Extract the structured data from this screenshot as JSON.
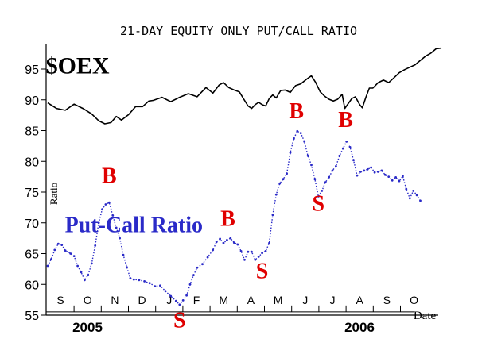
{
  "chart_data": {
    "type": "line",
    "title": "21-DAY EQUITY ONLY PUT/CALL RATIO",
    "ylabel": "Ratio",
    "xlabel": "Date",
    "ylim": [
      55,
      100
    ],
    "yticks": [
      55,
      60,
      65,
      70,
      75,
      80,
      85,
      90,
      95
    ],
    "months": [
      "S",
      "O",
      "N",
      "D",
      "J",
      "F",
      "M",
      "A",
      "M",
      "J",
      "J",
      "A",
      "S",
      "O"
    ],
    "years": [
      "2005",
      "2006"
    ],
    "series": [
      {
        "name": "$OEX",
        "color": "#000000",
        "values": [
          [
            0,
            89.5
          ],
          [
            10,
            88.6
          ],
          [
            20,
            88.3
          ],
          [
            30,
            89.3
          ],
          [
            40,
            88.6
          ],
          [
            50,
            87.7
          ],
          [
            58,
            86.6
          ],
          [
            65,
            86.1
          ],
          [
            72,
            86.3
          ],
          [
            78,
            87.3
          ],
          [
            84,
            86.7
          ],
          [
            92,
            87.6
          ],
          [
            100,
            88.9
          ],
          [
            108,
            88.9
          ],
          [
            115,
            89.8
          ],
          [
            120,
            89.9
          ],
          [
            130,
            90.4
          ],
          [
            140,
            89.7
          ],
          [
            150,
            90.4
          ],
          [
            160,
            91.0
          ],
          [
            170,
            90.5
          ],
          [
            180,
            92.0
          ],
          [
            188,
            91.1
          ],
          [
            195,
            92.4
          ],
          [
            200,
            92.8
          ],
          [
            206,
            92.0
          ],
          [
            212,
            91.6
          ],
          [
            218,
            91.3
          ],
          [
            224,
            89.9
          ],
          [
            228,
            89.0
          ],
          [
            232,
            88.6
          ],
          [
            236,
            89.2
          ],
          [
            240,
            89.6
          ],
          [
            244,
            89.2
          ],
          [
            248,
            89.0
          ],
          [
            252,
            90.2
          ],
          [
            256,
            90.8
          ],
          [
            260,
            90.3
          ],
          [
            265,
            91.5
          ],
          [
            270,
            91.6
          ],
          [
            276,
            91.2
          ],
          [
            282,
            92.3
          ],
          [
            288,
            92.6
          ],
          [
            294,
            93.3
          ],
          [
            300,
            93.9
          ],
          [
            305,
            92.8
          ],
          [
            310,
            91.3
          ],
          [
            315,
            90.6
          ],
          [
            320,
            90.1
          ],
          [
            325,
            89.8
          ],
          [
            330,
            90.1
          ],
          [
            335,
            90.9
          ],
          [
            338,
            88.6
          ],
          [
            342,
            89.4
          ],
          [
            346,
            90.2
          ],
          [
            350,
            90.5
          ],
          [
            355,
            89.2
          ],
          [
            358,
            88.7
          ],
          [
            362,
            90.4
          ],
          [
            366,
            91.9
          ],
          [
            370,
            91.9
          ],
          [
            376,
            92.8
          ],
          [
            382,
            93.2
          ],
          [
            388,
            92.8
          ],
          [
            394,
            93.6
          ],
          [
            400,
            94.4
          ],
          [
            406,
            94.9
          ],
          [
            412,
            95.3
          ],
          [
            418,
            95.7
          ],
          [
            424,
            96.4
          ],
          [
            430,
            97.1
          ],
          [
            436,
            97.6
          ],
          [
            442,
            98.3
          ],
          [
            448,
            98.4
          ]
        ]
      },
      {
        "name": "Put-Call Ratio",
        "color": "#2a2ac8",
        "values": [
          [
            0,
            63.0
          ],
          [
            4,
            64.1
          ],
          [
            8,
            65.6
          ],
          [
            12,
            66.6
          ],
          [
            16,
            66.4
          ],
          [
            20,
            65.5
          ],
          [
            26,
            65.0
          ],
          [
            30,
            64.6
          ],
          [
            34,
            63.0
          ],
          [
            38,
            62.0
          ],
          [
            42,
            60.7
          ],
          [
            46,
            61.5
          ],
          [
            50,
            63.4
          ],
          [
            54,
            66.3
          ],
          [
            58,
            70.0
          ],
          [
            62,
            72.2
          ],
          [
            66,
            73.0
          ],
          [
            70,
            73.3
          ],
          [
            74,
            71.2
          ],
          [
            78,
            69.2
          ],
          [
            82,
            67.5
          ],
          [
            86,
            64.8
          ],
          [
            90,
            62.8
          ],
          [
            94,
            61.0
          ],
          [
            98,
            60.8
          ],
          [
            104,
            60.7
          ],
          [
            110,
            60.5
          ],
          [
            116,
            60.2
          ],
          [
            122,
            59.7
          ],
          [
            128,
            59.8
          ],
          [
            134,
            58.9
          ],
          [
            140,
            58.1
          ],
          [
            146,
            57.3
          ],
          [
            150,
            56.7
          ],
          [
            154,
            57.4
          ],
          [
            158,
            58.2
          ],
          [
            162,
            60.0
          ],
          [
            166,
            61.5
          ],
          [
            170,
            62.7
          ],
          [
            176,
            63.3
          ],
          [
            182,
            64.4
          ],
          [
            188,
            65.6
          ],
          [
            192,
            66.9
          ],
          [
            196,
            67.4
          ],
          [
            200,
            66.7
          ],
          [
            204,
            67.2
          ],
          [
            208,
            67.5
          ],
          [
            212,
            66.8
          ],
          [
            216,
            66.5
          ],
          [
            220,
            65.4
          ],
          [
            224,
            64.0
          ],
          [
            228,
            65.3
          ],
          [
            232,
            65.3
          ],
          [
            236,
            64.0
          ],
          [
            240,
            64.5
          ],
          [
            244,
            65.1
          ],
          [
            248,
            65.4
          ],
          [
            252,
            66.7
          ],
          [
            256,
            71.3
          ],
          [
            260,
            74.6
          ],
          [
            264,
            76.4
          ],
          [
            268,
            77.1
          ],
          [
            272,
            78.0
          ],
          [
            276,
            81.4
          ],
          [
            280,
            83.7
          ],
          [
            284,
            84.9
          ],
          [
            288,
            84.6
          ],
          [
            292,
            83.2
          ],
          [
            296,
            80.9
          ],
          [
            300,
            79.4
          ],
          [
            304,
            77.1
          ],
          [
            308,
            74.3
          ],
          [
            312,
            75.2
          ],
          [
            316,
            76.6
          ],
          [
            320,
            77.4
          ],
          [
            324,
            78.5
          ],
          [
            328,
            79.2
          ],
          [
            332,
            80.9
          ],
          [
            336,
            82.1
          ],
          [
            340,
            83.2
          ],
          [
            344,
            82.3
          ],
          [
            348,
            80.2
          ],
          [
            352,
            77.7
          ],
          [
            356,
            78.3
          ],
          [
            360,
            78.5
          ],
          [
            364,
            78.7
          ],
          [
            368,
            79.0
          ],
          [
            372,
            78.2
          ],
          [
            376,
            78.3
          ],
          [
            380,
            78.5
          ],
          [
            384,
            77.8
          ],
          [
            388,
            77.5
          ],
          [
            392,
            76.9
          ],
          [
            396,
            77.4
          ],
          [
            400,
            76.8
          ],
          [
            404,
            77.6
          ],
          [
            408,
            75.5
          ],
          [
            412,
            74.0
          ],
          [
            416,
            75.2
          ],
          [
            420,
            74.5
          ],
          [
            424,
            73.6
          ]
        ]
      }
    ],
    "annotations": [
      {
        "text": "$OEX",
        "color": "#000000",
        "x": 34,
        "y": 94.3
      },
      {
        "text": "Put-Call Ratio",
        "color": "#2a2ac8",
        "x": 98,
        "y": 68.5
      },
      {
        "text": "B",
        "color": "#e00000",
        "x": 70,
        "y": 76.5
      },
      {
        "text": "B",
        "color": "#e00000",
        "x": 205,
        "y": 69.5
      },
      {
        "text": "B",
        "color": "#e00000",
        "x": 283,
        "y": 87.0
      },
      {
        "text": "B",
        "color": "#e00000",
        "x": 339,
        "y": 85.6
      },
      {
        "text": "S",
        "color": "#e00000",
        "x": 150,
        "y": 53.0
      },
      {
        "text": "S",
        "color": "#e00000",
        "x": 244,
        "y": 61.0
      },
      {
        "text": "S",
        "color": "#e00000",
        "x": 308,
        "y": 72.0
      }
    ]
  }
}
